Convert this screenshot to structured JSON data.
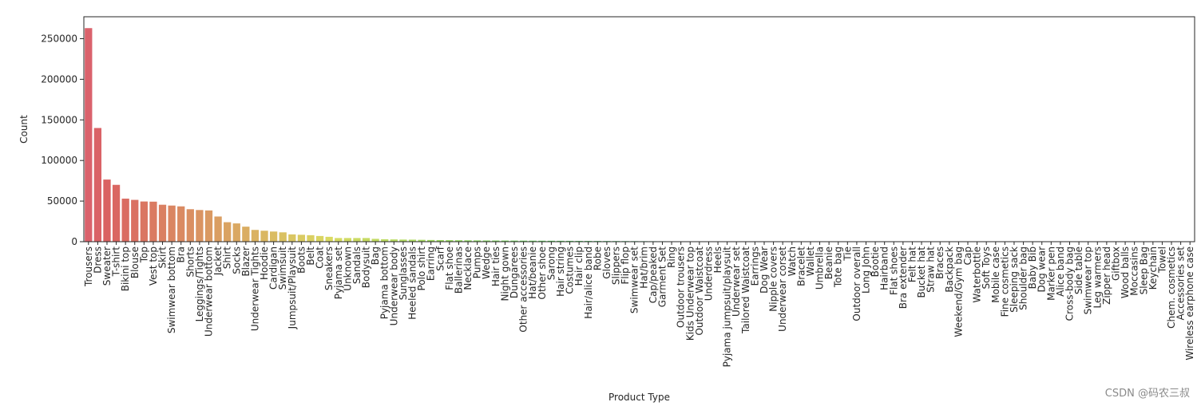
{
  "chart_data": {
    "type": "bar",
    "xlabel": "Product Type",
    "ylabel": "Count",
    "ylim": [
      0,
      277000
    ],
    "yticks": [
      0,
      50000,
      100000,
      150000,
      200000,
      250000
    ],
    "ytick_labels": [
      "0",
      "50000",
      "100000",
      "150000",
      "200000",
      "250000"
    ],
    "grid": false,
    "legend": "none",
    "palette_start": "#e8868f",
    "palette_end": "#d45fc4",
    "categories": [
      "Trousers",
      "Dress",
      "Sweater",
      "T-shirt",
      "Bikini top",
      "Blouse",
      "Top",
      "Vest top",
      "Skirt",
      "Swimwear bottom",
      "Bra",
      "Shorts",
      "Leggings/Tights",
      "Underwear bottom",
      "Jacket",
      "Shirt",
      "Socks",
      "Blazer",
      "Underwear Tights",
      "Hoodie",
      "Cardigan",
      "Swimsuit",
      "Jumpsuit/Playsuit",
      "Boots",
      "Belt",
      "Coat",
      "Sneakers",
      "Pyjama set",
      "Unknown",
      "Sandals",
      "Bodysuit",
      "Bag",
      "Pyjama bottom",
      "Underwear body",
      "Sunglasses",
      "Heeled sandals",
      "Polo shirt",
      "Earring",
      "Scarf",
      "Flat shoe",
      "Ballerinas",
      "Necklace",
      "Pumps",
      "Wedge",
      "Hair ties",
      "Night gown",
      "Dungarees",
      "Other accessories",
      "Hat/beanie",
      "Other shoe",
      "Sarong",
      "Hair string",
      "Costumes",
      "Hair clip",
      "Hair/alice band",
      "Robe",
      "Gloves",
      "Slippers",
      "Flip flop",
      "Swimwear set",
      "Hat/brim",
      "Cap/peaked",
      "Garment Set",
      "Ring",
      "Outdoor trousers",
      "Kids Underwear top",
      "Outdoor Waistcoat",
      "Underdress",
      "Heels",
      "Pyjama jumpsuit/playsuit",
      "Underwear set",
      "Tailored Waistcoat",
      "Earrings",
      "Dog Wear",
      "Nipple covers",
      "Underwear corset",
      "Watch",
      "Bracelet",
      "Wallet",
      "Umbrella",
      "Beanie",
      "Tote bag",
      "Tie",
      "Outdoor overall",
      "Long John",
      "Bootie",
      "Hairband",
      "Flat shoes",
      "Bra extender",
      "Felt hat",
      "Bucket hat",
      "Straw hat",
      "Braces",
      "Backpack",
      "Weekend/Gym bag",
      "Cap",
      "Waterbottle",
      "Soft Toys",
      "Mobile case",
      "Fine cosmetics",
      "Sleeping sack",
      "Shoulder bag",
      "Baby Bib",
      "Dog wear",
      "Marker pen",
      "Alice band",
      "Cross-body bag",
      "Side table",
      "Swimwear top",
      "Leg warmers",
      "Zipper head",
      "Giftbox",
      "Wood balls",
      "Moccasins",
      "Sleep Bag",
      "Keychain",
      "Towel",
      "Chem. cosmetics",
      "Accessories set",
      "Wireless earphone case"
    ],
    "values": [
      263000,
      140000,
      76500,
      70000,
      53000,
      51500,
      49500,
      49300,
      45500,
      44500,
      43500,
      40000,
      39000,
      38500,
      31000,
      24000,
      22500,
      18500,
      14500,
      13500,
      12500,
      11500,
      9000,
      8500,
      8000,
      7000,
      6000,
      4500,
      4500,
      4500,
      4500,
      3500,
      3000,
      2800,
      2600,
      2500,
      2300,
      2100,
      2000,
      1900,
      1800,
      1700,
      1600,
      1500,
      1450,
      1400,
      1350,
      1300,
      1250,
      1200,
      1150,
      1100,
      1050,
      1000,
      950,
      900,
      850,
      800,
      750,
      700,
      650,
      600,
      550,
      500,
      200,
      180,
      160,
      150,
      140,
      130,
      120,
      110,
      100,
      95,
      90,
      85,
      80,
      75,
      70,
      65,
      60,
      55,
      50,
      45,
      42,
      40,
      38,
      36,
      34,
      32,
      30,
      28,
      26,
      24,
      22,
      20,
      18,
      16,
      14,
      12,
      11,
      10,
      9,
      8,
      7,
      6,
      5,
      5,
      4,
      4,
      3,
      3,
      3,
      2,
      2,
      2,
      1,
      1,
      1,
      1
    ]
  },
  "watermark": "CSDN @码农三叔"
}
